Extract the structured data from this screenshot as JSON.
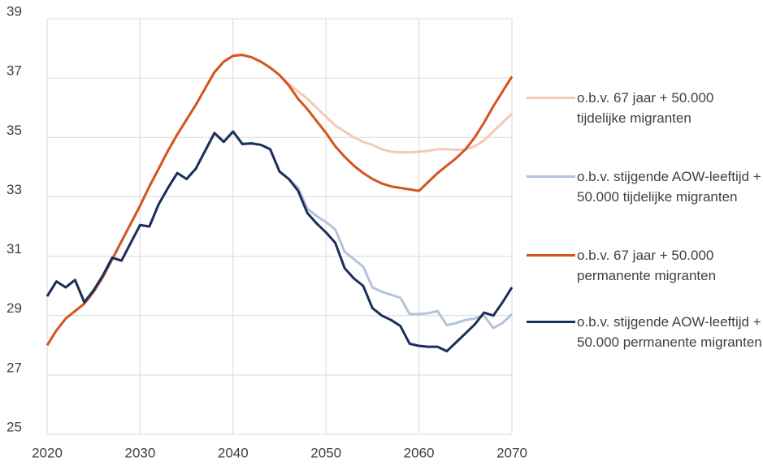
{
  "chart_data": {
    "type": "line",
    "x": [
      2020,
      2021,
      2022,
      2023,
      2024,
      2025,
      2026,
      2027,
      2028,
      2029,
      2030,
      2031,
      2032,
      2033,
      2034,
      2035,
      2036,
      2037,
      2038,
      2039,
      2040,
      2041,
      2042,
      2043,
      2044,
      2045,
      2046,
      2047,
      2048,
      2049,
      2050,
      2051,
      2052,
      2053,
      2054,
      2055,
      2056,
      2057,
      2058,
      2059,
      2060,
      2061,
      2062,
      2063,
      2064,
      2065,
      2066,
      2067,
      2068,
      2069,
      2070
    ],
    "series": [
      {
        "name": "o.b.v. 67 jaar + 50.000 tijdelijke migranten",
        "color": "#f4c9b6",
        "values": [
          28.0,
          28.5,
          28.9,
          29.15,
          29.4,
          29.8,
          30.3,
          30.9,
          31.5,
          32.1,
          32.7,
          33.35,
          33.95,
          34.55,
          35.1,
          35.6,
          36.1,
          36.65,
          37.2,
          37.55,
          37.75,
          37.78,
          37.7,
          37.55,
          37.35,
          37.1,
          36.8,
          36.55,
          36.3,
          36.0,
          35.7,
          35.4,
          35.2,
          35.0,
          34.85,
          34.75,
          34.6,
          34.52,
          34.5,
          34.5,
          34.52,
          34.55,
          34.6,
          34.6,
          34.58,
          34.6,
          34.7,
          34.9,
          35.2,
          35.5,
          35.8
        ]
      },
      {
        "name": "o.b.v. stijgende AOW-leeftijd + 50.000 tijdelijke migranten",
        "color": "#b3c3d9",
        "values": [
          29.65,
          30.15,
          29.95,
          30.2,
          29.45,
          29.85,
          30.35,
          30.95,
          30.85,
          31.45,
          32.05,
          32.0,
          32.75,
          33.3,
          33.8,
          33.6,
          33.95,
          34.55,
          35.15,
          34.85,
          35.2,
          34.78,
          34.8,
          34.75,
          34.6,
          33.85,
          33.6,
          33.3,
          32.6,
          32.35,
          32.15,
          31.9,
          31.15,
          30.9,
          30.65,
          29.95,
          29.8,
          29.7,
          29.6,
          29.05,
          29.05,
          29.08,
          29.15,
          28.68,
          28.75,
          28.85,
          28.9,
          29.0,
          28.58,
          28.75,
          29.05
        ]
      },
      {
        "name": "o.b.v. 67 jaar + 50.000 permanente migranten",
        "color": "#d5541d",
        "values": [
          28.0,
          28.5,
          28.9,
          29.15,
          29.4,
          29.8,
          30.3,
          30.9,
          31.5,
          32.1,
          32.7,
          33.35,
          33.95,
          34.55,
          35.1,
          35.6,
          36.1,
          36.65,
          37.2,
          37.55,
          37.75,
          37.78,
          37.7,
          37.55,
          37.35,
          37.1,
          36.75,
          36.3,
          35.95,
          35.55,
          35.15,
          34.7,
          34.35,
          34.05,
          33.8,
          33.6,
          33.45,
          33.35,
          33.3,
          33.25,
          33.2,
          33.5,
          33.8,
          34.05,
          34.3,
          34.6,
          35.0,
          35.5,
          36.05,
          36.55,
          37.05
        ]
      },
      {
        "name": "o.b.v. stijgende AOW-leeftijd + 50.000 permanente migranten",
        "color": "#1b2f5b",
        "values": [
          29.65,
          30.15,
          29.95,
          30.2,
          29.45,
          29.85,
          30.35,
          30.95,
          30.85,
          31.45,
          32.05,
          32.0,
          32.75,
          33.3,
          33.8,
          33.6,
          33.95,
          34.55,
          35.15,
          34.85,
          35.2,
          34.78,
          34.8,
          34.75,
          34.6,
          33.85,
          33.6,
          33.2,
          32.45,
          32.1,
          31.8,
          31.45,
          30.6,
          30.25,
          30.0,
          29.25,
          29.0,
          28.85,
          28.65,
          28.05,
          27.98,
          27.95,
          27.95,
          27.8,
          28.1,
          28.4,
          28.7,
          29.1,
          29.0,
          29.45,
          29.95
        ]
      }
    ],
    "xlim": [
      2020,
      2070
    ],
    "xticks": [
      2020,
      2030,
      2040,
      2050,
      2060,
      2070
    ],
    "ylim": [
      25,
      39
    ],
    "yticks": [
      25,
      27,
      29,
      31,
      33,
      35,
      37,
      39
    ],
    "grid": true
  }
}
